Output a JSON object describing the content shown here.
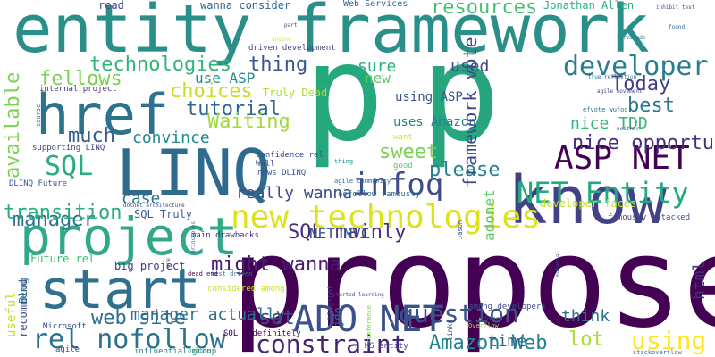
{
  "words": [
    {
      "text": "p",
      "color": "#25a87e"
    },
    {
      "text": "p",
      "color": "#26a57f"
    },
    {
      "text": "propose",
      "color": "#440154"
    },
    {
      "text": "entity framework",
      "color": "#2a8f88"
    },
    {
      "text": "know",
      "color": "#424186"
    },
    {
      "text": "LINQ",
      "color": "#2f6b8e"
    },
    {
      "text": "start",
      "color": "#30708e"
    },
    {
      "text": "project",
      "color": "#31a988"
    },
    {
      "text": "href",
      "color": "#2c728e"
    },
    {
      "text": "ADO NET",
      "color": "#3b518b"
    },
    {
      "text": "ASP NET",
      "color": "#440154"
    },
    {
      "text": "NET Entity",
      "color": "#24aa83"
    },
    {
      "text": "new technologies",
      "color": "#dde318"
    },
    {
      "text": "developer",
      "color": "#287d8e"
    },
    {
      "text": "infoq",
      "color": "#3e4c8a"
    },
    {
      "text": "SQL",
      "color": "#26ad81"
    },
    {
      "text": "question",
      "color": "#3b528b"
    },
    {
      "text": "constraint",
      "color": "#482475"
    },
    {
      "text": "rel nofollow",
      "color": "#2c718e"
    },
    {
      "text": "technologies",
      "color": "#31b57b"
    },
    {
      "text": "resources",
      "color": "#46c06f"
    },
    {
      "text": "choices",
      "color": "#c7e020"
    },
    {
      "text": "tutorial",
      "color": "#31678e"
    },
    {
      "text": "fellows",
      "color": "#7ad151"
    },
    {
      "text": "Today",
      "color": "#433e85"
    },
    {
      "text": "best",
      "color": "#2a768e"
    },
    {
      "text": "using",
      "color": "#fde725"
    },
    {
      "text": "manager",
      "color": "#2d708e"
    },
    {
      "text": "convince",
      "color": "#23888e"
    },
    {
      "text": "nice opportunity",
      "color": "#46307e"
    },
    {
      "text": "transition",
      "color": "#27ad81"
    },
    {
      "text": "sweet",
      "color": "#7ad151"
    },
    {
      "text": "please",
      "color": "#26818e"
    },
    {
      "text": "much",
      "color": "#355f8d"
    },
    {
      "text": "Waiting",
      "color": "#9fda3a"
    },
    {
      "text": "thing",
      "color": "#39568c"
    },
    {
      "text": "sure",
      "color": "#2ab07f"
    },
    {
      "text": "used",
      "color": "#404688"
    },
    {
      "text": "nice TDD",
      "color": "#35b779"
    },
    {
      "text": "web site",
      "color": "#2e6f8e"
    },
    {
      "text": "manager actually",
      "color": "#2d708e"
    },
    {
      "text": "really wanna",
      "color": "#3e4a89"
    },
    {
      "text": "case",
      "color": "#2c728e"
    },
    {
      "text": "SQL mainly",
      "color": "#472d7b"
    },
    {
      "text": "NET MVC",
      "color": "#3b528b"
    },
    {
      "text": "might wanna",
      "color": "#481f70"
    },
    {
      "text": "set",
      "color": "#3e4989"
    },
    {
      "text": "Amazon Web",
      "color": "#26828e"
    },
    {
      "text": "time",
      "color": "#31688e"
    },
    {
      "text": "lot",
      "color": "#aadc32"
    },
    {
      "text": "think",
      "color": "#2d708e"
    },
    {
      "text": "use ASP",
      "color": "#218e8d"
    },
    {
      "text": "new",
      "color": "#5ec962"
    },
    {
      "text": "using ASP",
      "color": "#3b528b"
    },
    {
      "text": "uses Amazon",
      "color": "#26818e"
    },
    {
      "text": "Truly Dead",
      "color": "#addc30"
    },
    {
      "text": "SQL Truly",
      "color": "#355f8d"
    },
    {
      "text": "read",
      "color": "#404688"
    },
    {
      "text": "wanna consider",
      "color": "#31688e"
    },
    {
      "text": "Web Services",
      "color": "#2e6e8e"
    },
    {
      "text": "Jonathan Allen",
      "color": "#2ab07f"
    },
    {
      "text": "driven development",
      "color": "#414487"
    },
    {
      "text": "Future rel",
      "color": "#3dbc74"
    },
    {
      "text": "big project",
      "color": "#453781"
    },
    {
      "text": "internal project",
      "color": "#46327e"
    },
    {
      "text": "supporting LINQ",
      "color": "#3f4788"
    },
    {
      "text": "DLINQ Future",
      "color": "#3b528b"
    },
    {
      "text": "confidence rel",
      "color": "#3e4a89"
    },
    {
      "text": "Well",
      "color": "#3e4989"
    },
    {
      "text": "news DLINQ",
      "color": "#3b528b"
    },
    {
      "text": "want",
      "color": "#d2e21b"
    },
    {
      "text": "thing",
      "color": "#20928c"
    },
    {
      "text": "good",
      "color": "#5ec962"
    },
    {
      "text": "nofollow famously",
      "color": "#2c728e"
    },
    {
      "text": "agile community",
      "color": "#31688e"
    },
    {
      "text": "developer faces",
      "color": "#c0df25"
    },
    {
      "text": "famously attacked",
      "color": "#3b528b"
    },
    {
      "text": "main drawbacks",
      "color": "#472d7b"
    },
    {
      "text": "test driven",
      "color": "#2c728e"
    },
    {
      "text": "dead end",
      "color": "#440154"
    },
    {
      "text": "considered among",
      "color": "#cae11f"
    },
    {
      "text": "Microsoft",
      "color": "#3e4989"
    },
    {
      "text": "agile",
      "color": "#3b528b"
    },
    {
      "text": "influential group",
      "color": "#287d8e"
    },
    {
      "text": "online",
      "color": "#22a884"
    },
    {
      "text": "SQL indefinitely",
      "color": "#440154"
    },
    {
      "text": "MS entity",
      "color": "#3e4989"
    },
    {
      "text": "among developers",
      "color": "#3e4c8a"
    },
    {
      "text": "Overflow",
      "color": "#9fda3a"
    },
    {
      "text": "Stack",
      "color": "#33638d"
    },
    {
      "text": "stackoverflow",
      "color": "#2d708e"
    },
    {
      "text": "anyone",
      "color": "#e5e419"
    },
    {
      "text": "part",
      "color": "#3e4989"
    },
    {
      "text": "inhibit test",
      "color": "#3b528b"
    },
    {
      "text": "forms ado",
      "color": "#2c728e"
    },
    {
      "text": "found",
      "color": "#31688e"
    },
    {
      "text": "true reflection",
      "color": "#2d708e"
    },
    {
      "text": "agile movement",
      "color": "#3e4989"
    },
    {
      "text": "efvote wufoo",
      "color": "#2c728e"
    },
    {
      "text": "neither",
      "color": "#35608d"
    },
    {
      "text": "started learning",
      "color": "#3e4989"
    },
    {
      "text": "dotnet architecture",
      "color": "#3e4989"
    },
    {
      "text": "available",
      "color": "#7ad151"
    },
    {
      "text": "framework vote",
      "color": "#3e4989"
    },
    {
      "text": "html",
      "color": "#472d7b"
    },
    {
      "text": "adonet",
      "color": "#5ec962"
    },
    {
      "text": "useful",
      "color": "#bddf26"
    },
    {
      "text": "jdo",
      "color": "#31688e"
    },
    {
      "text": "Blog",
      "color": "#287d8e"
    },
    {
      "text": "recommend",
      "color": "#3e4989"
    },
    {
      "text": "course",
      "color": "#2d708e"
    },
    {
      "text": "blogspot",
      "color": "#3e4989"
    },
    {
      "text": "links",
      "color": "#3b528b"
    },
    {
      "text": "conference",
      "color": "#7ad151"
    },
    {
      "text": "material",
      "color": "#3b528b"
    },
    {
      "text": "Jason",
      "color": "#3e4989"
    },
    {
      "text": "principles",
      "color": "#31688e"
    },
    {
      "text": "one",
      "color": "#3e4989"
    }
  ]
}
